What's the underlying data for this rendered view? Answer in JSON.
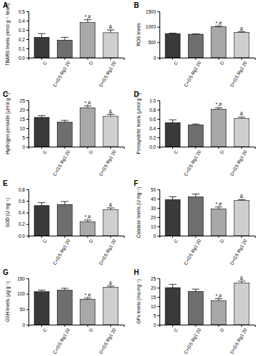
{
  "chart_data": [
    {
      "type": "bar",
      "title": "A",
      "ylabel": "TBARS levels (nmol g⁻¹ heart)",
      "categories": [
        "C",
        "C+GS Rg1 20",
        "D",
        "D+GS Rg1 20"
      ],
      "values": [
        0.22,
        0.19,
        0.38,
        0.27
      ],
      "errors": [
        0.04,
        0.03,
        0.03,
        0.03
      ],
      "colors": [
        "#3a3a3a",
        "#6e6e6e",
        "#a8a8a8",
        "#cfcfcf"
      ],
      "ylim": [
        0,
        0.5
      ],
      "yticks": [
        {
          "value": 0,
          "label": "0.0"
        },
        0.1,
        0.2,
        0.3,
        0.4,
        0.5
      ],
      "annotations": [
        {
          "category": "D",
          "text": "*,#"
        },
        {
          "category": "D+GS Rg1 20",
          "text": "&"
        }
      ]
    },
    {
      "type": "bar",
      "title": "B",
      "ylabel": "ROS levels",
      "categories": [
        "C",
        "C+GS Rg1 20",
        "D",
        "D+GS Rg1 20"
      ],
      "values": [
        780,
        760,
        1000,
        820
      ],
      "errors": [
        15,
        10,
        20,
        20
      ],
      "colors": [
        "#3a3a3a",
        "#6e6e6e",
        "#a8a8a8",
        "#cfcfcf"
      ],
      "ylim": [
        0,
        1500
      ],
      "yticks": [
        0,
        500,
        1000,
        1500
      ],
      "annotations": [
        {
          "category": "D",
          "text": "*,#"
        },
        {
          "category": "D+GS Rg1 20",
          "text": "&"
        }
      ]
    },
    {
      "type": "bar",
      "title": "C",
      "ylabel": "Hydrogen peroxide (μmol g⁻¹)",
      "categories": [
        "C",
        "C+GS Rg1 20",
        "D",
        "D+GS Rg1 20"
      ],
      "values": [
        15.8,
        13.2,
        21,
        16.5
      ],
      "errors": [
        1,
        1,
        1,
        1
      ],
      "colors": [
        "#3a3a3a",
        "#6e6e6e",
        "#a8a8a8",
        "#cfcfcf"
      ],
      "ylim": [
        0,
        25
      ],
      "yticks": [
        0,
        5,
        10,
        15,
        20,
        25
      ],
      "annotations": [
        {
          "category": "D",
          "text": "*,#"
        },
        {
          "category": "D+GS Rg1 20",
          "text": "&"
        }
      ]
    },
    {
      "type": "bar",
      "title": "D",
      "ylabel": "Peroxynitrite levels (μmol g⁻¹)",
      "categories": [
        "C",
        "C+GS Rg1 20",
        "D",
        "D+GS Rg1 20"
      ],
      "values": [
        0.52,
        0.47,
        0.81,
        0.61
      ],
      "errors": [
        0.06,
        0.02,
        0.03,
        0.03
      ],
      "colors": [
        "#3a3a3a",
        "#6e6e6e",
        "#a8a8a8",
        "#cfcfcf"
      ],
      "ylim": [
        0,
        1
      ],
      "yticks": [
        {
          "value": 0,
          "label": "0.0"
        },
        0.2,
        0.4,
        0.6,
        0.8,
        {
          "value": 1,
          "label": "1.0"
        }
      ],
      "annotations": [
        {
          "category": "D",
          "text": "*,#"
        },
        {
          "category": "D+GS Rg1 20",
          "text": "&"
        }
      ]
    },
    {
      "type": "bar",
      "title": "E",
      "ylabel": "SOD (U mg⁻¹)",
      "categories": [
        "C",
        "C+GS Rg1 20",
        "D",
        "D+GS Rg1 20"
      ],
      "values": [
        0.52,
        0.54,
        0.24,
        0.45
      ],
      "errors": [
        0.05,
        0.05,
        0.03,
        0.03
      ],
      "colors": [
        "#3a3a3a",
        "#6e6e6e",
        "#a8a8a8",
        "#cfcfcf"
      ],
      "ylim": [
        0,
        0.8
      ],
      "yticks": [
        {
          "value": 0,
          "label": "0.0"
        },
        0.2,
        0.4,
        0.6,
        0.8
      ],
      "annotations": [
        {
          "category": "D",
          "text": "*,#"
        },
        {
          "category": "D+GS Rg1 20",
          "text": "&"
        }
      ]
    },
    {
      "type": "bar",
      "title": "F",
      "ylabel": "Catalase levels (U mg⁻¹)",
      "categories": [
        "C",
        "C+GS Rg1 20",
        "D",
        "D+GS Rg1 20"
      ],
      "values": [
        39,
        42,
        29,
        38
      ],
      "errors": [
        3,
        3,
        2,
        1
      ],
      "colors": [
        "#3a3a3a",
        "#6e6e6e",
        "#a8a8a8",
        "#cfcfcf"
      ],
      "ylim": [
        0,
        50
      ],
      "yticks": [
        0,
        10,
        20,
        30,
        40,
        50
      ],
      "annotations": [
        {
          "category": "D",
          "text": "*,#"
        },
        {
          "category": "D+GS Rg1 20",
          "text": "&"
        }
      ]
    },
    {
      "type": "bar",
      "title": "G",
      "ylabel": "GSH levels (μg g⁻¹)",
      "categories": [
        "C",
        "C+GS Rg1 20",
        "D",
        "D+GS Rg1 20"
      ],
      "values": [
        107,
        112,
        82,
        121
      ],
      "errors": [
        5,
        6,
        4,
        4
      ],
      "colors": [
        "#3a3a3a",
        "#6e6e6e",
        "#a8a8a8",
        "#cfcfcf"
      ],
      "ylim": [
        0,
        150
      ],
      "yticks": [
        0,
        50,
        100,
        150
      ],
      "annotations": [
        {
          "category": "D",
          "text": "*,#"
        },
        {
          "category": "D+GS Rg1 20",
          "text": "&"
        }
      ]
    },
    {
      "type": "bar",
      "title": "H",
      "ylabel": "GPx levels (mu.mg⁻¹)",
      "categories": [
        "C",
        "C+GS Rg1 20",
        "D",
        "D+GS Rg1 20"
      ],
      "values": [
        20,
        18,
        13,
        22.5
      ],
      "errors": [
        1.8,
        1.2,
        1,
        1
      ],
      "colors": [
        "#3a3a3a",
        "#6e6e6e",
        "#a8a8a8",
        "#cfcfcf"
      ],
      "ylim": [
        0,
        25
      ],
      "yticks": [
        0,
        5,
        10,
        15,
        20,
        25
      ],
      "annotations": [
        {
          "category": "D",
          "text": "*,#"
        },
        {
          "category": "D+GS Rg1 20",
          "text": "&"
        }
      ]
    }
  ]
}
